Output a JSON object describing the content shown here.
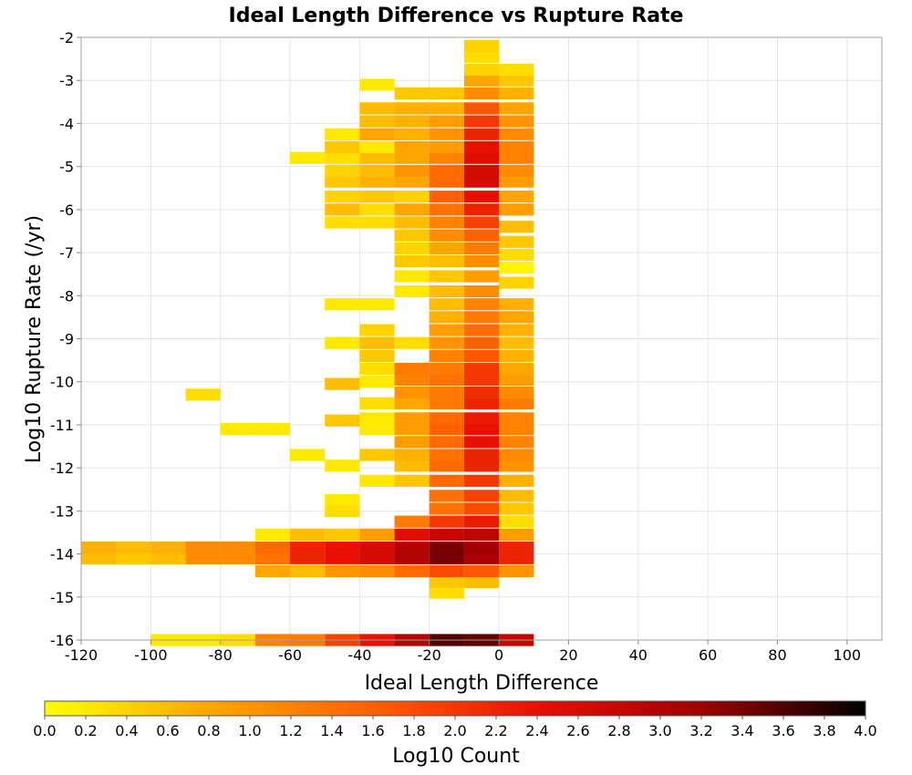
{
  "chart_data": {
    "type": "heatmap",
    "title": "Ideal Length Difference vs Rupture Rate",
    "xlabel": "Ideal Length Difference",
    "ylabel": "Log10 Rupture Rate (/yr)",
    "xlim": [
      -120,
      110
    ],
    "ylim": [
      -16,
      -2
    ],
    "xticks": [
      -120,
      -100,
      -80,
      -60,
      -40,
      -20,
      0,
      20,
      40,
      60,
      80,
      100
    ],
    "yticks": [
      -2,
      -3,
      -4,
      -5,
      -6,
      -7,
      -8,
      -9,
      -10,
      -11,
      -12,
      -13,
      -14,
      -15,
      -16
    ],
    "grid": true,
    "bin_width_x": 10,
    "bin_height_y": 0.28,
    "colorbar": {
      "label": "Log10 Count",
      "range": [
        0.0,
        4.0
      ],
      "ticks": [
        "0.0",
        "0.2",
        "0.4",
        "0.6",
        "0.8",
        "1.0",
        "1.2",
        "1.4",
        "1.6",
        "1.8",
        "2.0",
        "2.2",
        "2.4",
        "2.6",
        "2.8",
        "3.0",
        "3.2",
        "3.4",
        "3.6",
        "3.8",
        "4.0"
      ],
      "colormap": [
        "#ffff00",
        "#ffa500",
        "#ff6000",
        "#e81000",
        "#a00000",
        "#000000"
      ]
    },
    "columns": [
      {
        "x": -120,
        "cells": [
          [
            -14.1,
            0.6
          ],
          [
            -13.85,
            0.7
          ]
        ]
      },
      {
        "x": -110,
        "cells": [
          [
            -14.1,
            0.5
          ],
          [
            -13.85,
            0.6
          ]
        ]
      },
      {
        "x": -100,
        "cells": [
          [
            -16.0,
            0.2
          ],
          [
            -14.1,
            0.6
          ],
          [
            -13.85,
            0.7
          ]
        ]
      },
      {
        "x": -90,
        "cells": [
          [
            -16.0,
            0.2
          ],
          [
            -14.1,
            1.1
          ],
          [
            -13.85,
            1.1
          ],
          [
            -10.3,
            0.3
          ]
        ]
      },
      {
        "x": -80,
        "cells": [
          [
            -16.0,
            0.3
          ],
          [
            -14.1,
            1.1
          ],
          [
            -13.85,
            1.1
          ],
          [
            -11.1,
            0.2
          ]
        ]
      },
      {
        "x": -70,
        "cells": [
          [
            -16.0,
            1.2
          ],
          [
            -14.4,
            0.8
          ],
          [
            -14.1,
            1.4
          ],
          [
            -13.85,
            1.5
          ],
          [
            -13.55,
            0.2
          ],
          [
            -11.1,
            0.2
          ]
        ]
      },
      {
        "x": -60,
        "cells": [
          [
            -16.0,
            1.3
          ],
          [
            -14.4,
            0.6
          ],
          [
            -14.1,
            2.2
          ],
          [
            -13.85,
            2.2
          ],
          [
            -13.55,
            0.6
          ],
          [
            -11.7,
            0.2
          ],
          [
            -4.8,
            0.2
          ]
        ]
      },
      {
        "x": -50,
        "cells": [
          [
            -16.0,
            1.9
          ],
          [
            -14.4,
            1.0
          ],
          [
            -14.1,
            2.4
          ],
          [
            -13.85,
            2.4
          ],
          [
            -13.55,
            0.5
          ],
          [
            -13.0,
            0.3
          ],
          [
            -12.75,
            0.2
          ],
          [
            -11.95,
            0.2
          ],
          [
            -10.9,
            0.5
          ],
          [
            -10.05,
            0.6
          ],
          [
            -9.1,
            0.2
          ],
          [
            -8.2,
            0.2
          ],
          [
            -6.3,
            0.3
          ],
          [
            -6.0,
            0.6
          ],
          [
            -5.7,
            0.4
          ],
          [
            -5.35,
            0.5
          ],
          [
            -5.1,
            0.4
          ],
          [
            -4.8,
            0.3
          ],
          [
            -4.55,
            0.5
          ],
          [
            -4.25,
            0.2
          ]
        ]
      },
      {
        "x": -40,
        "cells": [
          [
            -16.0,
            2.4
          ],
          [
            -14.4,
            1.1
          ],
          [
            -14.1,
            2.6
          ],
          [
            -13.85,
            2.6
          ],
          [
            -13.55,
            0.9
          ],
          [
            -12.3,
            0.2
          ],
          [
            -11.7,
            0.5
          ],
          [
            -11.1,
            0.2
          ],
          [
            -10.85,
            0.2
          ],
          [
            -10.5,
            0.3
          ],
          [
            -10.0,
            0.2
          ],
          [
            -9.7,
            0.3
          ],
          [
            -9.4,
            0.5
          ],
          [
            -9.1,
            0.6
          ],
          [
            -8.8,
            0.4
          ],
          [
            -8.2,
            0.2
          ],
          [
            -6.3,
            0.3
          ],
          [
            -6.0,
            0.3
          ],
          [
            -5.7,
            0.5
          ],
          [
            -5.35,
            0.7
          ],
          [
            -5.1,
            0.6
          ],
          [
            -4.8,
            0.6
          ],
          [
            -4.55,
            0.2
          ],
          [
            -4.25,
            0.8
          ],
          [
            -3.95,
            0.6
          ],
          [
            -3.65,
            0.6
          ],
          [
            -3.1,
            0.2
          ]
        ]
      },
      {
        "x": -30,
        "cells": [
          [
            -16.0,
            3.0
          ],
          [
            -14.4,
            1.5
          ],
          [
            -14.1,
            3.0
          ],
          [
            -13.85,
            3.0
          ],
          [
            -13.55,
            2.5
          ],
          [
            -13.25,
            1.3
          ],
          [
            -12.3,
            0.5
          ],
          [
            -11.95,
            0.6
          ],
          [
            -11.7,
            0.7
          ],
          [
            -11.4,
            0.9
          ],
          [
            -11.1,
            0.9
          ],
          [
            -10.85,
            0.9
          ],
          [
            -10.5,
            0.8
          ],
          [
            -10.25,
            1.0
          ],
          [
            -9.95,
            1.2
          ],
          [
            -9.7,
            1.3
          ],
          [
            -9.1,
            0.3
          ],
          [
            -7.9,
            0.2
          ],
          [
            -7.55,
            0.2
          ],
          [
            -7.2,
            0.5
          ],
          [
            -6.9,
            0.4
          ],
          [
            -6.6,
            0.5
          ],
          [
            -6.3,
            0.6
          ],
          [
            -6.0,
            0.8
          ],
          [
            -5.7,
            0.4
          ],
          [
            -5.35,
            0.8
          ],
          [
            -5.1,
            1.0
          ],
          [
            -4.8,
            0.8
          ],
          [
            -4.55,
            0.8
          ],
          [
            -4.25,
            0.7
          ],
          [
            -3.95,
            0.7
          ],
          [
            -3.65,
            0.7
          ],
          [
            -3.3,
            0.5
          ]
        ]
      },
      {
        "x": -20,
        "cells": [
          [
            -16.0,
            3.6
          ],
          [
            -14.9,
            0.3
          ],
          [
            -14.65,
            0.5
          ],
          [
            -14.4,
            1.8
          ],
          [
            -14.1,
            3.4
          ],
          [
            -13.85,
            3.4
          ],
          [
            -13.55,
            2.8
          ],
          [
            -13.25,
            2.0
          ],
          [
            -12.95,
            1.4
          ],
          [
            -12.65,
            1.4
          ],
          [
            -12.3,
            1.5
          ],
          [
            -11.95,
            1.5
          ],
          [
            -11.7,
            1.4
          ],
          [
            -11.4,
            1.5
          ],
          [
            -11.1,
            1.6
          ],
          [
            -10.85,
            1.5
          ],
          [
            -10.5,
            1.3
          ],
          [
            -10.25,
            1.3
          ],
          [
            -9.95,
            1.4
          ],
          [
            -9.7,
            1.3
          ],
          [
            -9.4,
            1.2
          ],
          [
            -9.1,
            1.0
          ],
          [
            -8.8,
            0.9
          ],
          [
            -8.5,
            0.7
          ],
          [
            -8.2,
            0.6
          ],
          [
            -7.9,
            0.6
          ],
          [
            -7.55,
            0.5
          ],
          [
            -7.2,
            0.6
          ],
          [
            -6.9,
            0.8
          ],
          [
            -6.6,
            1.1
          ],
          [
            -6.3,
            1.2
          ],
          [
            -6.0,
            1.4
          ],
          [
            -5.7,
            1.6
          ],
          [
            -5.35,
            1.5
          ],
          [
            -5.1,
            1.5
          ],
          [
            -4.8,
            1.2
          ],
          [
            -4.55,
            0.9
          ],
          [
            -4.25,
            1.0
          ],
          [
            -3.95,
            0.9
          ],
          [
            -3.65,
            0.7
          ],
          [
            -3.3,
            0.5
          ]
        ]
      },
      {
        "x": -10,
        "cells": [
          [
            -16.0,
            3.5
          ],
          [
            -14.65,
            0.6
          ],
          [
            -14.4,
            1.7
          ],
          [
            -14.1,
            3.1
          ],
          [
            -13.85,
            3.2
          ],
          [
            -13.55,
            2.9
          ],
          [
            -13.25,
            2.3
          ],
          [
            -12.95,
            1.8
          ],
          [
            -12.65,
            1.9
          ],
          [
            -12.3,
            2.0
          ],
          [
            -11.95,
            2.2
          ],
          [
            -11.7,
            2.2
          ],
          [
            -11.4,
            2.4
          ],
          [
            -11.1,
            2.4
          ],
          [
            -10.85,
            2.3
          ],
          [
            -10.5,
            2.2
          ],
          [
            -10.25,
            2.1
          ],
          [
            -9.95,
            2.0
          ],
          [
            -9.7,
            2.0
          ],
          [
            -9.4,
            1.7
          ],
          [
            -9.1,
            1.6
          ],
          [
            -8.8,
            1.5
          ],
          [
            -8.5,
            1.3
          ],
          [
            -8.2,
            1.2
          ],
          [
            -7.9,
            1.1
          ],
          [
            -7.55,
            0.9
          ],
          [
            -7.2,
            1.1
          ],
          [
            -6.9,
            1.3
          ],
          [
            -6.6,
            1.6
          ],
          [
            -6.3,
            1.9
          ],
          [
            -6.0,
            2.2
          ],
          [
            -5.7,
            2.4
          ],
          [
            -5.35,
            2.6
          ],
          [
            -5.1,
            2.6
          ],
          [
            -4.8,
            2.5
          ],
          [
            -4.55,
            2.4
          ],
          [
            -4.25,
            2.2
          ],
          [
            -3.95,
            2.0
          ],
          [
            -3.65,
            1.7
          ],
          [
            -3.3,
            1.1
          ],
          [
            -3.0,
            0.8
          ],
          [
            -2.75,
            0.4
          ],
          [
            -2.45,
            0.3
          ],
          [
            -2.2,
            0.4
          ]
        ]
      },
      {
        "x": 0,
        "cells": [
          [
            -16.0,
            2.8
          ],
          [
            -14.4,
            1.0
          ],
          [
            -14.1,
            2.2
          ],
          [
            -13.85,
            2.2
          ],
          [
            -13.55,
            0.9
          ],
          [
            -13.25,
            0.3
          ],
          [
            -12.95,
            0.5
          ],
          [
            -12.65,
            0.6
          ],
          [
            -12.3,
            0.7
          ],
          [
            -11.95,
            1.0
          ],
          [
            -11.7,
            1.1
          ],
          [
            -11.4,
            1.2
          ],
          [
            -11.1,
            1.2
          ],
          [
            -10.85,
            1.2
          ],
          [
            -10.5,
            1.3
          ],
          [
            -10.25,
            1.1
          ],
          [
            -9.95,
            0.9
          ],
          [
            -9.7,
            0.8
          ],
          [
            -9.4,
            0.7
          ],
          [
            -9.1,
            0.6
          ],
          [
            -8.8,
            0.7
          ],
          [
            -8.5,
            0.8
          ],
          [
            -8.2,
            0.7
          ],
          [
            -7.7,
            0.4
          ],
          [
            -7.35,
            0.1
          ],
          [
            -7.05,
            0.3
          ],
          [
            -6.75,
            0.5
          ],
          [
            -6.4,
            0.6
          ],
          [
            -6.0,
            0.9
          ],
          [
            -5.7,
            0.8
          ],
          [
            -5.35,
            0.9
          ],
          [
            -5.1,
            1.1
          ],
          [
            -4.8,
            1.2
          ],
          [
            -4.55,
            1.2
          ],
          [
            -4.25,
            1.1
          ],
          [
            -3.95,
            1.0
          ],
          [
            -3.65,
            0.8
          ],
          [
            -3.3,
            0.7
          ],
          [
            -3.0,
            0.5
          ],
          [
            -2.75,
            0.3
          ]
        ]
      }
    ]
  }
}
